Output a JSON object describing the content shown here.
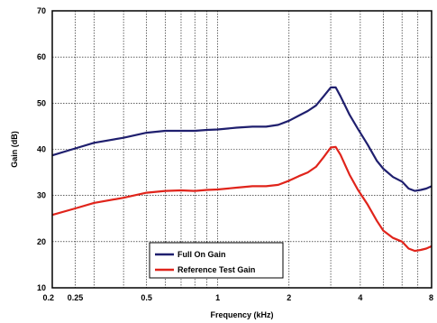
{
  "chart_data": {
    "type": "line",
    "xlabel": "Frequency (kHz)",
    "ylabel": "Gain (dB)",
    "xscale": "log",
    "xlim": [
      0.2,
      8
    ],
    "ylim": [
      10,
      70
    ],
    "grid": true,
    "legend_position": "bottom-center",
    "x_ticks": [
      0.2,
      0.25,
      0.5,
      1,
      2,
      4,
      8
    ],
    "x_tick_labels": [
      "0.2",
      "0.25",
      "0.5",
      "1",
      "2",
      "4",
      "8"
    ],
    "x_minor_grid": [
      0.3,
      0.4,
      0.6,
      0.7,
      0.8,
      0.9,
      3,
      5,
      6,
      7
    ],
    "y_ticks": [
      10,
      20,
      30,
      40,
      50,
      60,
      70
    ],
    "y_tick_labels": [
      "10",
      "20",
      "30",
      "40",
      "50",
      "60",
      "70"
    ],
    "series": [
      {
        "name": "Full On Gain",
        "color": "#1f1f6e",
        "points": [
          [
            0.2,
            38.7
          ],
          [
            0.25,
            40.2
          ],
          [
            0.3,
            41.4
          ],
          [
            0.4,
            42.5
          ],
          [
            0.5,
            43.6
          ],
          [
            0.6,
            44.0
          ],
          [
            0.7,
            44.0
          ],
          [
            0.8,
            44.0
          ],
          [
            0.9,
            44.2
          ],
          [
            1.0,
            44.3
          ],
          [
            1.2,
            44.7
          ],
          [
            1.4,
            44.9
          ],
          [
            1.6,
            44.9
          ],
          [
            1.8,
            45.3
          ],
          [
            2.0,
            46.2
          ],
          [
            2.2,
            47.3
          ],
          [
            2.4,
            48.3
          ],
          [
            2.6,
            49.5
          ],
          [
            2.8,
            51.5
          ],
          [
            3.0,
            53.4
          ],
          [
            3.15,
            53.4
          ],
          [
            3.3,
            51.5
          ],
          [
            3.6,
            47.5
          ],
          [
            3.9,
            44.5
          ],
          [
            4.3,
            41.0
          ],
          [
            4.7,
            37.5
          ],
          [
            5.0,
            35.8
          ],
          [
            5.5,
            34.0
          ],
          [
            6.0,
            33.0
          ],
          [
            6.4,
            31.5
          ],
          [
            6.8,
            31.0
          ],
          [
            7.2,
            31.2
          ],
          [
            7.6,
            31.5
          ],
          [
            8.0,
            32.0
          ]
        ]
      },
      {
        "name": "Reference Test Gain",
        "color": "#e0241b",
        "points": [
          [
            0.2,
            25.8
          ],
          [
            0.25,
            27.2
          ],
          [
            0.3,
            28.4
          ],
          [
            0.4,
            29.5
          ],
          [
            0.5,
            30.6
          ],
          [
            0.6,
            31.0
          ],
          [
            0.7,
            31.1
          ],
          [
            0.8,
            31.0
          ],
          [
            0.9,
            31.2
          ],
          [
            1.0,
            31.3
          ],
          [
            1.2,
            31.7
          ],
          [
            1.4,
            32.0
          ],
          [
            1.6,
            32.0
          ],
          [
            1.8,
            32.3
          ],
          [
            2.0,
            33.2
          ],
          [
            2.2,
            34.2
          ],
          [
            2.4,
            35.0
          ],
          [
            2.6,
            36.2
          ],
          [
            2.8,
            38.3
          ],
          [
            3.0,
            40.4
          ],
          [
            3.15,
            40.5
          ],
          [
            3.3,
            38.8
          ],
          [
            3.6,
            34.5
          ],
          [
            3.9,
            31.3
          ],
          [
            4.3,
            28.0
          ],
          [
            4.7,
            24.5
          ],
          [
            5.0,
            22.4
          ],
          [
            5.5,
            20.8
          ],
          [
            6.0,
            20.0
          ],
          [
            6.4,
            18.5
          ],
          [
            6.8,
            18.0
          ],
          [
            7.2,
            18.2
          ],
          [
            7.6,
            18.5
          ],
          [
            8.0,
            19.0
          ]
        ]
      }
    ]
  }
}
